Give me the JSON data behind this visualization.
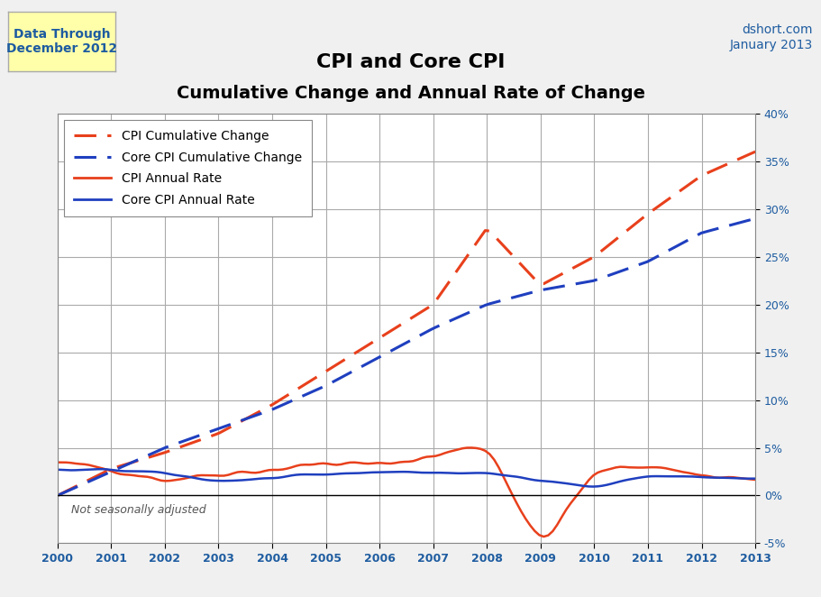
{
  "title_line1": "CPI and Core CPI",
  "title_line2": "Cumulative Change and Annual Rate of Change",
  "top_left_text": "Data Through\nDecember 2012",
  "top_right_text": "dshort.com\nJanuary 2013",
  "bottom_left_text": "Not seasonally adjusted",
  "years": [
    2000,
    2001,
    2002,
    2003,
    2004,
    2005,
    2006,
    2007,
    2008,
    2009,
    2010,
    2011,
    2012,
    2013
  ],
  "cpi_cumulative": [
    0.0,
    2.8,
    4.5,
    6.5,
    9.5,
    13.0,
    16.5,
    20.0,
    28.0,
    22.0,
    25.0,
    29.5,
    33.5,
    36.0
  ],
  "core_cpi_cumulative": [
    0.0,
    2.5,
    5.0,
    7.0,
    9.0,
    11.5,
    14.5,
    17.5,
    20.0,
    21.5,
    22.5,
    24.5,
    27.5,
    29.0
  ],
  "cpi_annual": [
    3.4,
    2.8,
    1.6,
    2.3,
    2.7,
    3.4,
    3.2,
    4.1,
    5.6,
    -1.4,
    2.7,
    3.2,
    2.1,
    1.7
  ],
  "core_cpi_annual": [
    2.6,
    2.7,
    2.3,
    1.5,
    1.8,
    2.2,
    2.5,
    2.4,
    2.3,
    1.7,
    0.8,
    2.1,
    1.9,
    1.7
  ],
  "ylim": [
    -5,
    40
  ],
  "yticks": [
    -5,
    0,
    5,
    10,
    15,
    20,
    25,
    30,
    35,
    40
  ],
  "cpi_cum_color": "#E8401C",
  "core_cum_color": "#1F3FBF",
  "cpi_ann_color": "#E8401C",
  "core_ann_color": "#1F3FBF",
  "bg_color": "#F0F0F0",
  "plot_bg_color": "#FFFFFF",
  "grid_color": "#AAAAAA"
}
